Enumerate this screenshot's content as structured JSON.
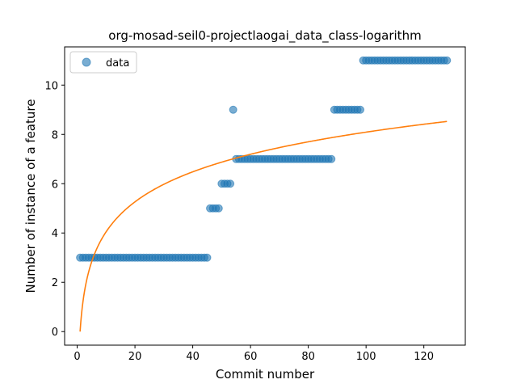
{
  "chart_data": {
    "type": "scatter",
    "title": "org-mosad-seil0-projectlaogai_data_class-logarithm",
    "xlabel": "Commit number",
    "ylabel": "Number of instance of a feature",
    "xlim": [
      -4.35,
      134.35
    ],
    "ylim": [
      -0.55,
      11.55
    ],
    "xticks": [
      0,
      20,
      40,
      60,
      80,
      100,
      120
    ],
    "yticks": [
      0,
      2,
      4,
      6,
      8,
      10
    ],
    "legend": {
      "placement": "top-left",
      "entries": [
        "data"
      ]
    },
    "grid": false,
    "series": [
      {
        "name": "data",
        "kind": "scatter",
        "color": "#1f77b4",
        "segments": [
          {
            "x_from": 1,
            "x_to": 45,
            "y": 3
          },
          {
            "x_from": 46,
            "x_to": 49,
            "y": 5
          },
          {
            "x_from": 50,
            "x_to": 53,
            "y": 6
          },
          {
            "x_from": 54,
            "x_to": 54,
            "y": 9
          },
          {
            "x_from": 55,
            "x_to": 88,
            "y": 7
          },
          {
            "x_from": 89,
            "x_to": 98,
            "y": 9
          },
          {
            "x_from": 99,
            "x_to": 128,
            "y": 11
          }
        ]
      },
      {
        "name": "",
        "kind": "line",
        "color": "#ff7f0e",
        "model": "a*ln(x)",
        "coefficient_a": 1.757,
        "x_from": 1,
        "x_to": 128
      }
    ]
  }
}
